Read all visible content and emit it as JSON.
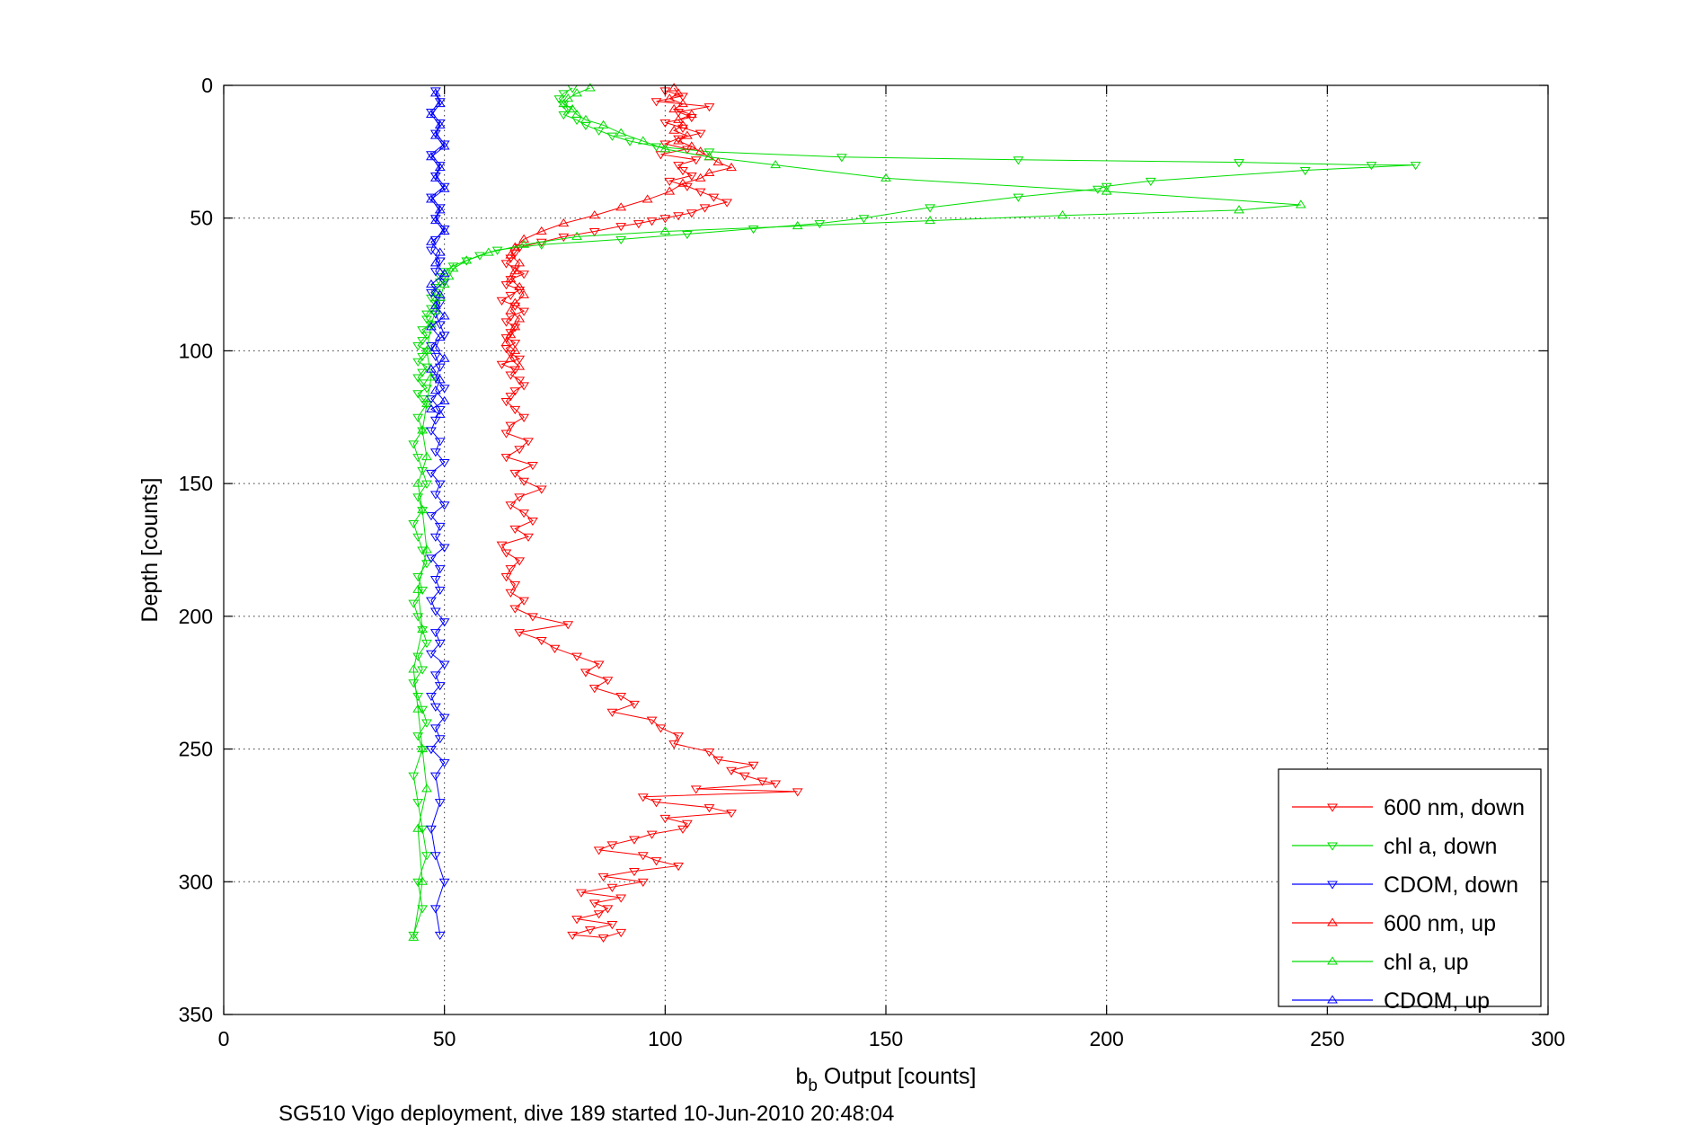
{
  "chart_data": {
    "type": "scatter",
    "title": "",
    "xlabel_main": "b",
    "xlabel_sub": "b",
    "xlabel_rest": " Output [counts]",
    "ylabel": "Depth [counts]",
    "caption": "SG510 Vigo deployment, dive 189 started 10-Jun-2010 20:48:04",
    "xlim": [
      0,
      300
    ],
    "ylim": [
      0,
      350
    ],
    "y_reversed": true,
    "grid": true,
    "legend_position": "bottom-right",
    "xticks": [
      "0",
      "50",
      "100",
      "150",
      "200",
      "250",
      "300"
    ],
    "yticks": [
      "0",
      "50",
      "100",
      "150",
      "200",
      "250",
      "300",
      "350"
    ],
    "series": [
      {
        "name": "600 nm, down",
        "color": "#ff0000",
        "marker": "triangle-down",
        "x": [
          100,
          104,
          98,
          110,
          103,
          106,
          100,
          104,
          108,
          103,
          100,
          105,
          99,
          107,
          103,
          104,
          106,
          101,
          105,
          108,
          111,
          114,
          109,
          106,
          103,
          100,
          97,
          94,
          90,
          84,
          77,
          72,
          67,
          66,
          65,
          64,
          66,
          68,
          65,
          64,
          67,
          65,
          63,
          66,
          68,
          65,
          64,
          66,
          65,
          64,
          66,
          64,
          65,
          67,
          63,
          66,
          65,
          67,
          68,
          66,
          65,
          64,
          66,
          68,
          65,
          64,
          69,
          67,
          64,
          70,
          66,
          68,
          72,
          67,
          65,
          68,
          70,
          66,
          69,
          63,
          64,
          67,
          65,
          64,
          66,
          65,
          68,
          66,
          70,
          78,
          67,
          72,
          75,
          80,
          85,
          82,
          87,
          84,
          90,
          93,
          88,
          97,
          99,
          103,
          102,
          110,
          112,
          120,
          115,
          118,
          122,
          125,
          107,
          130,
          95,
          98,
          110,
          115,
          100,
          105,
          104,
          97,
          93,
          88,
          85,
          95,
          98,
          103,
          93,
          86,
          95,
          88,
          81,
          90,
          84,
          87,
          85,
          80,
          88,
          83,
          79,
          86,
          90
        ],
        "y": [
          2,
          4,
          6,
          8,
          10,
          12,
          14,
          16,
          18,
          20,
          22,
          24,
          26,
          28,
          30,
          32,
          34,
          36,
          38,
          40,
          42,
          44,
          46,
          48,
          49,
          50,
          51,
          52,
          53,
          55,
          57,
          59,
          61,
          63,
          65,
          67,
          69,
          71,
          73,
          75,
          77,
          79,
          81,
          83,
          85,
          87,
          89,
          91,
          93,
          95,
          97,
          99,
          101,
          103,
          105,
          107,
          109,
          111,
          113,
          115,
          117,
          119,
          122,
          125,
          128,
          131,
          134,
          137,
          140,
          143,
          146,
          149,
          152,
          155,
          158,
          161,
          164,
          167,
          170,
          173,
          176,
          179,
          182,
          185,
          188,
          191,
          194,
          197,
          200,
          203,
          206,
          209,
          212,
          215,
          218,
          221,
          224,
          227,
          230,
          233,
          236,
          239,
          242,
          245,
          248,
          251,
          254,
          256,
          258,
          260,
          262,
          263,
          265,
          266,
          268,
          270,
          272,
          274,
          276,
          278,
          280,
          282,
          284,
          286,
          288,
          290,
          292,
          294,
          296,
          298,
          300,
          302,
          304,
          306,
          308,
          310,
          312,
          314,
          316,
          318,
          320,
          321,
          319
        ]
      },
      {
        "name": "chl a, down",
        "color": "#00dd00",
        "marker": "triangle-down",
        "x": [
          79,
          77,
          76,
          77,
          78,
          77,
          80,
          82,
          85,
          88,
          92,
          98,
          110,
          140,
          180,
          230,
          260,
          270,
          245,
          210,
          200,
          198,
          180,
          160,
          145,
          135,
          120,
          105,
          90,
          72,
          62,
          58,
          55,
          52,
          50,
          49,
          49,
          48,
          48,
          47,
          48,
          47,
          46,
          46,
          47,
          45,
          46,
          45,
          44,
          46,
          45,
          44,
          46,
          45,
          44,
          45,
          46,
          44,
          45,
          46,
          44,
          45,
          43,
          44,
          45,
          46,
          44,
          45,
          43,
          44,
          45,
          46,
          44,
          45,
          43,
          44,
          45,
          46,
          44,
          45,
          43,
          44,
          45,
          46,
          44,
          45,
          43,
          44,
          45,
          46,
          44,
          45,
          43
        ],
        "y": [
          1,
          3,
          5,
          7,
          9,
          11,
          13,
          15,
          17,
          19,
          21,
          23,
          25,
          27,
          28,
          29,
          30,
          30,
          32,
          36,
          38,
          39,
          42,
          46,
          50,
          52,
          54,
          56,
          58,
          60,
          62,
          64,
          66,
          68,
          70,
          72,
          74,
          76,
          78,
          80,
          82,
          84,
          86,
          88,
          90,
          92,
          94,
          96,
          98,
          100,
          102,
          104,
          106,
          108,
          110,
          112,
          114,
          116,
          118,
          120,
          125,
          130,
          135,
          140,
          145,
          150,
          155,
          160,
          165,
          170,
          175,
          180,
          185,
          190,
          195,
          200,
          205,
          210,
          215,
          220,
          225,
          230,
          235,
          240,
          245,
          250,
          260,
          270,
          280,
          290,
          300,
          310,
          320
        ]
      },
      {
        "name": "CDOM, down",
        "color": "#0000ff",
        "marker": "triangle-down",
        "x": [
          48,
          49,
          47,
          49,
          48,
          50,
          47,
          49,
          48,
          50,
          47,
          49,
          48,
          50,
          48,
          47,
          49,
          48,
          50,
          47,
          49,
          48,
          49,
          50,
          47,
          48,
          49,
          48,
          50,
          47,
          49,
          48,
          47,
          49,
          48,
          50,
          47,
          49,
          48,
          50,
          47,
          49,
          48,
          50,
          47,
          49,
          48,
          49,
          47,
          48,
          50,
          48,
          49,
          47,
          50,
          48,
          49,
          47,
          48,
          50,
          48,
          49,
          47,
          50,
          48,
          49,
          47,
          48,
          50,
          48,
          49
        ],
        "y": [
          2,
          6,
          10,
          14,
          18,
          22,
          26,
          30,
          34,
          38,
          42,
          46,
          50,
          54,
          58,
          62,
          66,
          70,
          74,
          78,
          82,
          86,
          90,
          94,
          98,
          102,
          106,
          110,
          114,
          118,
          122,
          126,
          130,
          134,
          138,
          142,
          146,
          150,
          154,
          158,
          162,
          166,
          170,
          174,
          178,
          182,
          186,
          190,
          194,
          198,
          202,
          206,
          210,
          214,
          218,
          222,
          226,
          230,
          234,
          238,
          242,
          246,
          250,
          255,
          260,
          270,
          280,
          290,
          300,
          310,
          320
        ]
      },
      {
        "name": "600 nm, up",
        "color": "#ff0000",
        "marker": "triangle-up",
        "x": [
          102,
          103,
          101,
          104,
          102,
          106,
          103,
          104,
          102,
          105,
          103,
          106,
          108,
          110,
          112,
          115,
          110,
          108,
          104,
          101,
          96,
          90,
          84,
          77,
          72,
          68,
          66,
          65,
          67,
          66,
          65,
          67,
          68,
          66,
          65,
          67,
          66,
          65,
          64,
          66,
          65,
          67
        ],
        "y": [
          1,
          3,
          5,
          7,
          9,
          11,
          13,
          15,
          17,
          19,
          21,
          23,
          25,
          27,
          29,
          31,
          33,
          35,
          37,
          40,
          43,
          46,
          49,
          52,
          55,
          58,
          61,
          64,
          67,
          70,
          73,
          76,
          79,
          82,
          85,
          88,
          91,
          94,
          97,
          100,
          103,
          106
        ]
      },
      {
        "name": "chl a, up",
        "color": "#00dd00",
        "marker": "triangle-up",
        "x": [
          83,
          80,
          78,
          77,
          79,
          80,
          82,
          86,
          90,
          95,
          100,
          110,
          125,
          150,
          200,
          244,
          230,
          190,
          160,
          130,
          100,
          80,
          68,
          60,
          55,
          52,
          51,
          50,
          49,
          48,
          47,
          46,
          47,
          46,
          45,
          46,
          44,
          45,
          46,
          44,
          45,
          43,
          44,
          45,
          46,
          44,
          45,
          43
        ],
        "y": [
          1,
          3,
          5,
          7,
          9,
          11,
          13,
          15,
          18,
          21,
          24,
          27,
          30,
          35,
          40,
          45,
          47,
          49,
          51,
          53,
          55,
          57,
          60,
          63,
          66,
          69,
          72,
          75,
          80,
          85,
          90,
          100,
          110,
          120,
          130,
          140,
          150,
          160,
          175,
          190,
          205,
          220,
          235,
          250,
          265,
          280,
          300,
          321
        ]
      },
      {
        "name": "CDOM, up",
        "color": "#0000ff",
        "marker": "triangle-up",
        "x": [
          48,
          49,
          47,
          49,
          48,
          50,
          47,
          49,
          48,
          50,
          47,
          49,
          48,
          50,
          47,
          49,
          48,
          50,
          47,
          49,
          48,
          50,
          47,
          49,
          48,
          50,
          47,
          49,
          48,
          50,
          47,
          49
        ],
        "y": [
          3,
          7,
          11,
          15,
          19,
          23,
          27,
          31,
          35,
          39,
          43,
          47,
          51,
          55,
          59,
          63,
          67,
          71,
          75,
          79,
          83,
          87,
          91,
          95,
          99,
          103,
          107,
          111,
          115,
          119,
          122,
          124
        ]
      }
    ]
  }
}
